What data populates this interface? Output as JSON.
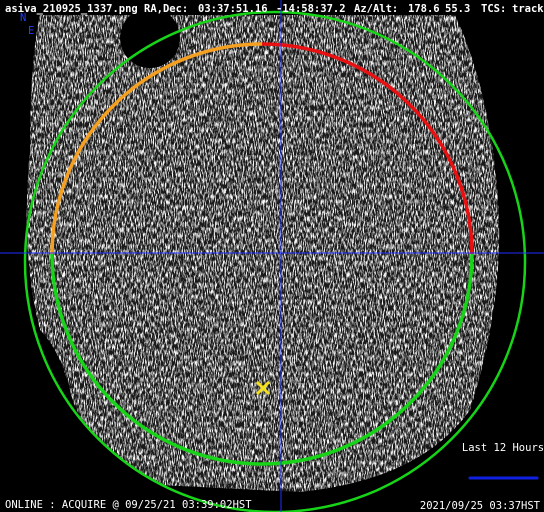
{
  "header": {
    "file": "asiva_210925_1337.png",
    "radec_label": "RA,Dec:",
    "ra": "03:37:51.16",
    "dec": "-14:58:37.2",
    "azalt_label": "Az/Alt:",
    "az": "178.6",
    "alt": "55.3",
    "tcs_label": "TCS:",
    "tcs": "track"
  },
  "compass": {
    "n": "N",
    "e": "E"
  },
  "legend": {
    "label": "Last 12 Hours"
  },
  "footer": {
    "status": "ONLINE : ACQUIRE @ 09/25/21 03:39:02HST",
    "timestamp": "2021/09/25 03:37HST"
  }
}
